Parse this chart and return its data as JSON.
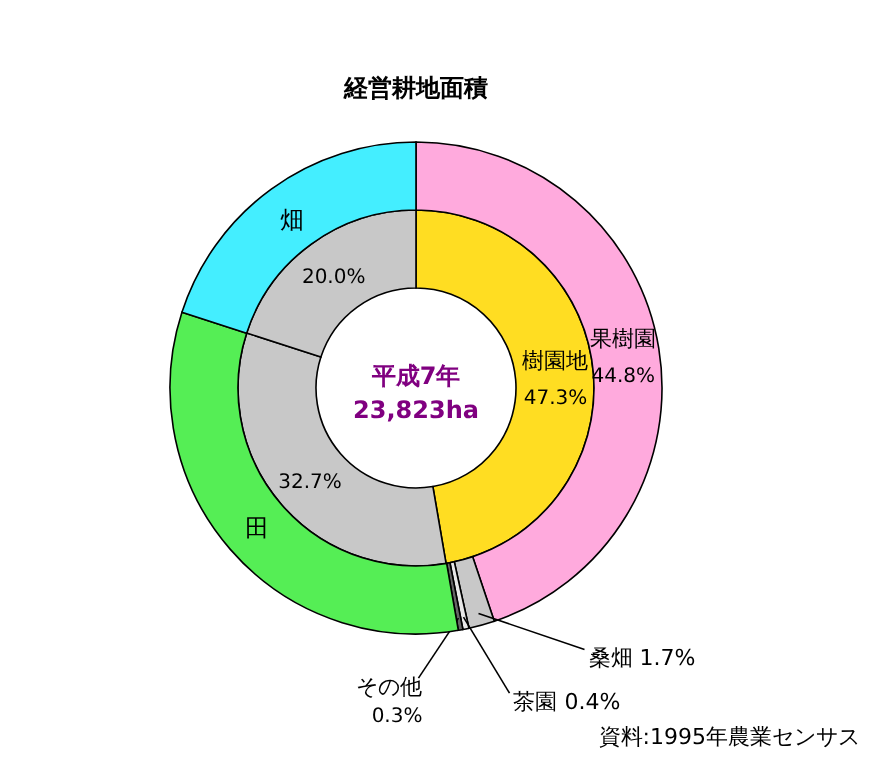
{
  "chart_data": [
    {
      "type": "donut",
      "title": "経営耕地面積",
      "categories": [
        "樹園地",
        null,
        null
      ],
      "values": [
        47.3,
        32.7,
        20.0
      ],
      "colors": [
        "#ffdd22",
        "#c8c8c8",
        "#c8c8c8"
      ],
      "value_labels": [
        "47.3%",
        "32.7%",
        "20.0%"
      ],
      "annotations": [
        "平成7年",
        "23,823ha"
      ]
    },
    {
      "type": "donut",
      "categories": [
        "果樹園",
        "桑畑",
        "茶園",
        "その他",
        "田",
        "畑"
      ],
      "values": [
        44.8,
        1.7,
        0.4,
        0.3,
        32.7,
        20.0
      ],
      "colors": [
        "#ffaadd",
        "#c8c8c8",
        "#e8e8e8",
        "#666666",
        "#55ee55",
        "#44eeff"
      ],
      "value_labels": [
        "44.8%",
        "1.7%",
        "0.4%",
        "0.3%",
        null,
        null
      ],
      "annotations": [
        "資料:1995年農業センサス"
      ]
    }
  ]
}
